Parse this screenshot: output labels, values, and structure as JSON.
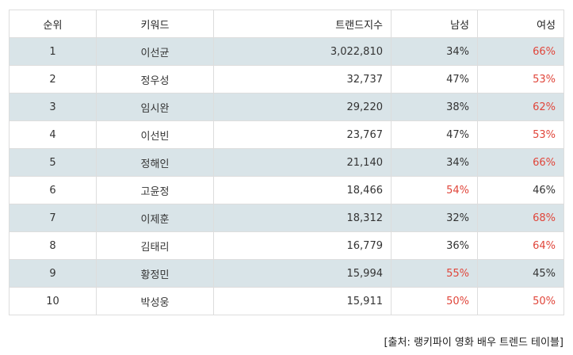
{
  "table": {
    "headers": {
      "rank": "순위",
      "keyword": "키워드",
      "trend_index": "트랜드지수",
      "male": "남성",
      "female": "여성"
    },
    "rows": [
      {
        "rank": "1",
        "keyword": "이선균",
        "trend_index": "3,022,810",
        "male": "34%",
        "female": "66%",
        "highlight": "female"
      },
      {
        "rank": "2",
        "keyword": "정우성",
        "trend_index": "32,737",
        "male": "47%",
        "female": "53%",
        "highlight": "female"
      },
      {
        "rank": "3",
        "keyword": "임시완",
        "trend_index": "29,220",
        "male": "38%",
        "female": "62%",
        "highlight": "female"
      },
      {
        "rank": "4",
        "keyword": "이선빈",
        "trend_index": "23,767",
        "male": "47%",
        "female": "53%",
        "highlight": "female"
      },
      {
        "rank": "5",
        "keyword": "정해인",
        "trend_index": "21,140",
        "male": "34%",
        "female": "66%",
        "highlight": "female"
      },
      {
        "rank": "6",
        "keyword": "고윤정",
        "trend_index": "18,466",
        "male": "54%",
        "female": "46%",
        "highlight": "male"
      },
      {
        "rank": "7",
        "keyword": "이제훈",
        "trend_index": "18,312",
        "male": "32%",
        "female": "68%",
        "highlight": "female"
      },
      {
        "rank": "8",
        "keyword": "김태리",
        "trend_index": "16,779",
        "male": "36%",
        "female": "64%",
        "highlight": "female"
      },
      {
        "rank": "9",
        "keyword": "황정민",
        "trend_index": "15,994",
        "male": "55%",
        "female": "45%",
        "highlight": "male"
      },
      {
        "rank": "10",
        "keyword": "박성웅",
        "trend_index": "15,911",
        "male": "50%",
        "female": "50%",
        "highlight": "both"
      }
    ]
  },
  "source": "[출처: 랭키파이 영화 배우 트렌드 테이블]",
  "colors": {
    "highlight": "#e0453a",
    "stripe": "#d9e4e8"
  }
}
